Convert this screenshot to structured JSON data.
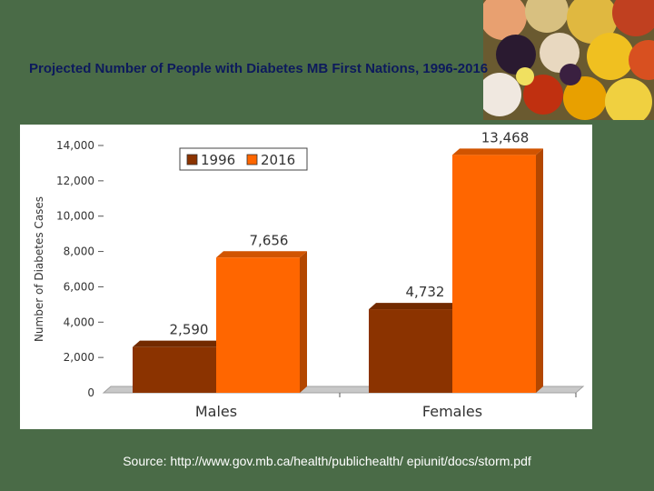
{
  "slide": {
    "title": "Projected Number of People with Diabetes MB First Nations, 1996-2016",
    "source": "Source:  http://www.gov.mb.ca/health/publichealth/ epiunit/docs/storm.pdf"
  },
  "colors": {
    "background": "#4a6b47",
    "title": "#0d1a5c",
    "series_1996": "#8b3300",
    "series_2016": "#ff6600"
  },
  "chart_data": {
    "type": "bar",
    "categories": [
      "Males",
      "Females"
    ],
    "series": [
      {
        "name": "1996",
        "values": [
          2590,
          4732
        ],
        "labels": [
          "2,590",
          "4,732"
        ],
        "color": "#8b3300"
      },
      {
        "name": "2016",
        "values": [
          7656,
          13468
        ],
        "labels": [
          "7,656",
          "13,468"
        ],
        "color": "#ff6600"
      }
    ],
    "ylabel": "Number of Diabetes Cases",
    "ylim": [
      0,
      14000
    ],
    "yticks": [
      0,
      2000,
      4000,
      6000,
      8000,
      10000,
      12000,
      14000
    ],
    "ytick_labels": [
      "0",
      "2,000",
      "4,000",
      "6,000",
      "8,000",
      "10,000",
      "12,000",
      "14,000"
    ],
    "legend": "top-left",
    "grid": false,
    "style": "3d-bars"
  }
}
